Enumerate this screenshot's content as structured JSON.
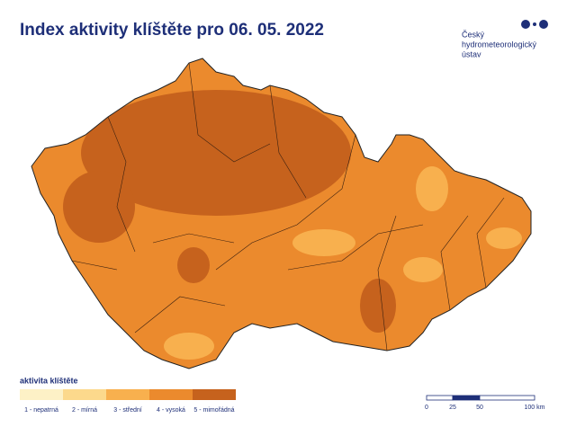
{
  "header": {
    "title": "Index aktivity klíštěte pro 06. 05. 2022"
  },
  "logo": {
    "lines": [
      "Český",
      "hydrometeorologický",
      "ústav"
    ]
  },
  "legend": {
    "title": "aktivita klíštěte",
    "items": [
      {
        "label": "1 - nepatrná",
        "color": "#fdf1c6"
      },
      {
        "label": "2 - mírná",
        "color": "#fcd98c"
      },
      {
        "label": "3 - střední",
        "color": "#f8b04e"
      },
      {
        "label": "4 - vysoká",
        "color": "#eb8a2d"
      },
      {
        "label": "5 - mimořádná",
        "color": "#c6621d"
      }
    ]
  },
  "scale_bar": {
    "labels": [
      "0",
      "25",
      "50",
      "100 km"
    ]
  }
}
